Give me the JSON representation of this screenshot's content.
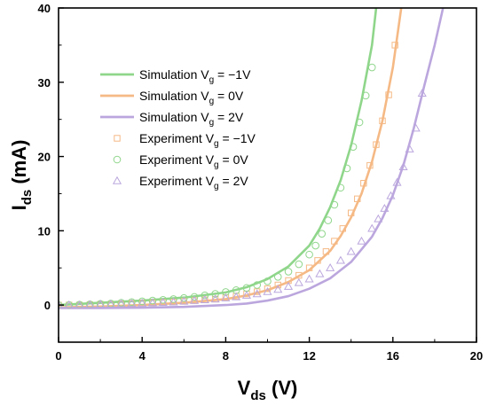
{
  "chart_data": {
    "type": "line",
    "xlabel": {
      "main": "V",
      "sub": "ds",
      "unit": " (V)"
    },
    "ylabel": {
      "main": "I",
      "sub": "ds",
      "unit": " (mA)"
    },
    "xlim": [
      0,
      20
    ],
    "ylim": [
      -5,
      40
    ],
    "xticks": [
      0,
      4,
      8,
      12,
      16,
      20
    ],
    "yticks": [
      0,
      10,
      20,
      30,
      40
    ],
    "grid": false,
    "legend_position": "top-left",
    "series": [
      {
        "name": "Simulation V_g = −1V",
        "legend_main": "Simulation V",
        "legend_sub": "g",
        "legend_suffix": " = −1V",
        "kind": "line",
        "color": "#8fd68b",
        "x": [
          0,
          2,
          4,
          6,
          8,
          9,
          10,
          11,
          12,
          12.5,
          13,
          13.5,
          14,
          14.5,
          15,
          15.2
        ],
        "y": [
          0,
          0.3,
          0.6,
          1.0,
          1.7,
          2.4,
          3.5,
          5.2,
          8.0,
          10.3,
          13.2,
          16.8,
          21.5,
          27.5,
          35.0,
          40.0
        ]
      },
      {
        "name": "Simulation V_g = 0V",
        "legend_main": "Simulation V",
        "legend_sub": "g",
        "legend_suffix": " =  0V",
        "kind": "line",
        "color": "#f5b985",
        "x": [
          0,
          2,
          4,
          6,
          8,
          9,
          10,
          11,
          12,
          13,
          13.5,
          14,
          14.5,
          15,
          15.5,
          16,
          16.4
        ],
        "y": [
          -0.3,
          -0.2,
          0,
          0.3,
          0.8,
          1.3,
          2.0,
          3.1,
          4.7,
          7.3,
          9.3,
          11.8,
          15.0,
          19.3,
          24.8,
          32.0,
          40.0
        ]
      },
      {
        "name": "Simulation V_g = 2V",
        "legend_main": "Simulation V",
        "legend_sub": "g",
        "legend_suffix": " =  2V",
        "kind": "line",
        "color": "#bba7dd",
        "x": [
          0,
          2,
          4,
          6,
          8,
          9,
          10,
          11,
          12,
          13,
          14,
          15,
          15.5,
          16,
          16.5,
          17,
          17.5,
          18,
          18.4
        ],
        "y": [
          -0.4,
          -0.4,
          -0.35,
          -0.25,
          0,
          0.2,
          0.6,
          1.2,
          2.2,
          3.6,
          5.8,
          9.2,
          11.7,
          14.8,
          18.8,
          23.8,
          29.5,
          35.0,
          40.0
        ]
      },
      {
        "name": "Experiment V_g = −1V",
        "legend_main": "Experiment V",
        "legend_sub": "g",
        "legend_suffix": " = −1V",
        "kind": "square",
        "color": "#f5b985",
        "x": [
          0,
          0.5,
          1,
          1.5,
          2,
          2.5,
          3,
          3.5,
          4,
          4.5,
          5,
          5.5,
          6,
          6.5,
          7,
          7.5,
          8,
          8.5,
          9,
          9.5,
          10,
          10.5,
          11,
          11.5,
          12,
          12.4,
          12.8,
          13.2,
          13.6,
          14,
          14.3,
          14.6,
          14.9,
          15.2,
          15.5,
          15.8,
          16.1
        ],
        "y": [
          0,
          0,
          0,
          0.05,
          0.1,
          0.1,
          0.15,
          0.2,
          0.25,
          0.3,
          0.35,
          0.4,
          0.5,
          0.6,
          0.7,
          0.8,
          1.0,
          1.2,
          1.5,
          1.8,
          2.2,
          2.7,
          3.3,
          4.0,
          5.0,
          6.0,
          7.2,
          8.6,
          10.3,
          12.4,
          14.3,
          16.4,
          18.8,
          21.6,
          24.8,
          28.3,
          35.0
        ]
      },
      {
        "name": "Experiment V_g = 0V",
        "legend_main": "Experiment V",
        "legend_sub": "g",
        "legend_suffix": " =  0V",
        "kind": "circle",
        "color": "#8fd68b",
        "x": [
          0,
          0.5,
          1,
          1.5,
          2,
          2.5,
          3,
          3.5,
          4,
          4.5,
          5,
          5.5,
          6,
          6.5,
          7,
          7.5,
          8,
          8.5,
          9,
          9.5,
          10,
          10.5,
          11,
          11.5,
          12,
          12.3,
          12.6,
          12.9,
          13.2,
          13.5,
          13.8,
          14.1,
          14.4,
          14.7,
          15
        ],
        "y": [
          0,
          0,
          0.05,
          0.1,
          0.15,
          0.2,
          0.3,
          0.4,
          0.5,
          0.6,
          0.7,
          0.8,
          0.95,
          1.1,
          1.3,
          1.5,
          1.75,
          2.0,
          2.3,
          2.7,
          3.2,
          3.8,
          4.5,
          5.5,
          6.8,
          8.0,
          9.6,
          11.4,
          13.5,
          15.8,
          18.4,
          21.3,
          24.6,
          28.2,
          32.0
        ]
      },
      {
        "name": "Experiment V_g = 2V",
        "legend_main": "Experiment V",
        "legend_sub": "g",
        "legend_suffix": " =  2V",
        "kind": "triangle",
        "color": "#bba7dd",
        "x": [
          0,
          0.5,
          1,
          1.5,
          2,
          2.5,
          3,
          3.5,
          4,
          4.5,
          5,
          5.5,
          6,
          6.5,
          7,
          7.5,
          8,
          8.5,
          9,
          9.5,
          10,
          10.5,
          11,
          11.5,
          12,
          12.5,
          13,
          13.5,
          14,
          14.5,
          15,
          15.3,
          15.6,
          15.9,
          16.2,
          16.5,
          16.8,
          17.1,
          17.4
        ],
        "y": [
          0,
          0,
          0,
          0.05,
          0.1,
          0.1,
          0.15,
          0.2,
          0.25,
          0.3,
          0.35,
          0.4,
          0.5,
          0.6,
          0.7,
          0.8,
          0.95,
          1.1,
          1.3,
          1.5,
          1.8,
          2.1,
          2.5,
          3.0,
          3.5,
          4.2,
          5.0,
          6.0,
          7.2,
          8.6,
          10.3,
          11.6,
          13.0,
          14.7,
          16.5,
          18.6,
          21.0,
          23.8,
          28.5
        ]
      }
    ]
  }
}
